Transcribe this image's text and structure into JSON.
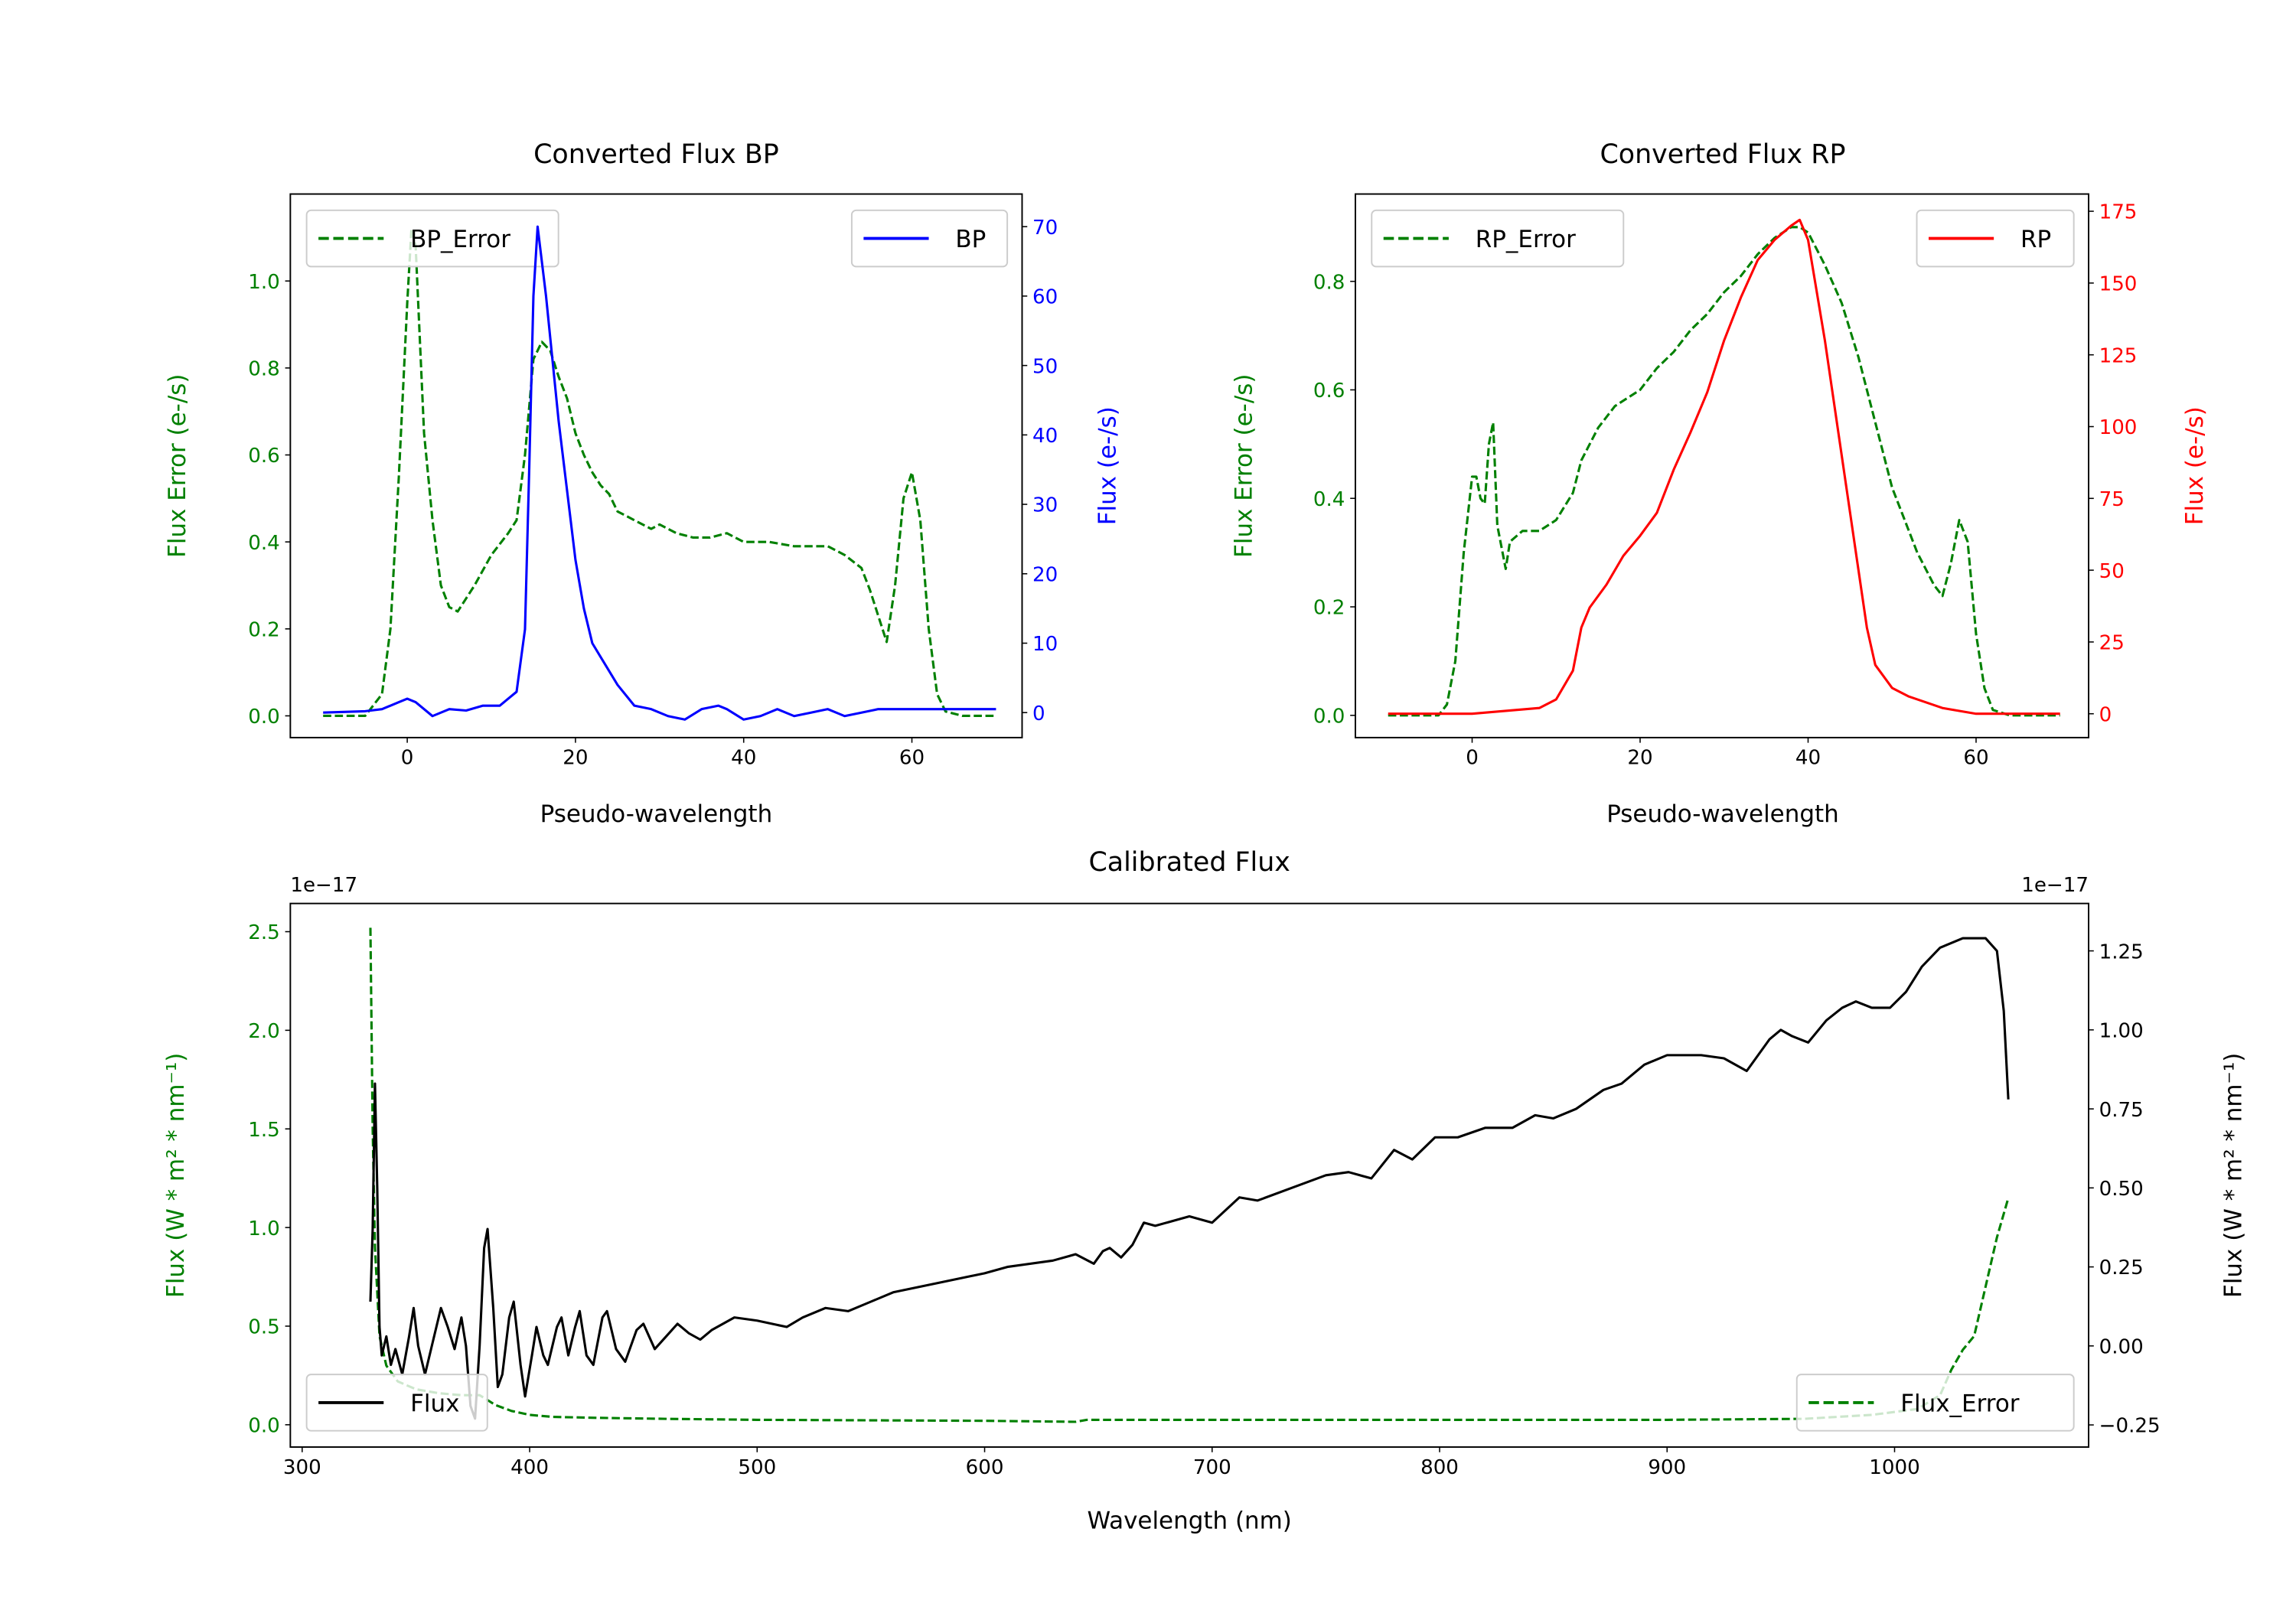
{
  "chart_data": [
    {
      "type": "line",
      "title": "Converted Flux BP",
      "xlabel": "Pseudo-wavelength",
      "ylabel_left": "Flux Error (e-/s)",
      "ylabel_right": "Flux (e-/s)",
      "xlim": [
        -13.9,
        73.1
      ],
      "ylim_left": [
        -0.05,
        1.2
      ],
      "ylim_right": [
        -3.6,
        74.7
      ],
      "xticks": [
        "0",
        "20",
        "40",
        "60"
      ],
      "xtick_values": [
        0,
        20,
        40,
        60
      ],
      "yticks_left": [
        "0.0",
        "0.2",
        "0.4",
        "0.6",
        "0.8",
        "1.0"
      ],
      "ytick_left_values": [
        0,
        0.2,
        0.4,
        0.6,
        0.8,
        1.0
      ],
      "yticks_right": [
        "0",
        "10",
        "20",
        "30",
        "40",
        "50",
        "60",
        "70"
      ],
      "ytick_right_values": [
        0,
        10,
        20,
        30,
        40,
        50,
        60,
        70
      ],
      "left_color": "#008000",
      "right_color": "#0000ff",
      "series": [
        {
          "name": "BP_Error",
          "axis": "left",
          "color": "#008000",
          "style": "dashed",
          "legend": "upper left",
          "x": [
            -10,
            -5,
            -3,
            -2,
            -1,
            0,
            0.5,
            1,
            2,
            3,
            4,
            5,
            6,
            7,
            8,
            10,
            12,
            13,
            14,
            15,
            16,
            17,
            18,
            19,
            20,
            21,
            22,
            23,
            24,
            25,
            27,
            29,
            30,
            32,
            34,
            36,
            38,
            40,
            43,
            46,
            48,
            50,
            52,
            54,
            55,
            56,
            57,
            58,
            59,
            60,
            61,
            62,
            63,
            64,
            66,
            70
          ],
          "y": [
            0,
            0,
            0.05,
            0.2,
            0.55,
            0.95,
            1.12,
            1.08,
            0.65,
            0.45,
            0.3,
            0.25,
            0.24,
            0.27,
            0.3,
            0.37,
            0.42,
            0.45,
            0.6,
            0.82,
            0.86,
            0.84,
            0.78,
            0.73,
            0.65,
            0.6,
            0.56,
            0.53,
            0.51,
            0.47,
            0.45,
            0.43,
            0.44,
            0.42,
            0.41,
            0.41,
            0.42,
            0.4,
            0.4,
            0.39,
            0.39,
            0.39,
            0.37,
            0.34,
            0.29,
            0.23,
            0.17,
            0.3,
            0.5,
            0.56,
            0.45,
            0.2,
            0.05,
            0.01,
            0,
            0
          ]
        },
        {
          "name": "BP",
          "axis": "right",
          "color": "#0000ff",
          "style": "solid",
          "legend": "upper right",
          "x": [
            -10,
            -5,
            -3,
            -1,
            0,
            1,
            3,
            5,
            7,
            9,
            11,
            12,
            13,
            14,
            14.5,
            15,
            15.5,
            16.5,
            18,
            20,
            21,
            22,
            23,
            25,
            27,
            29,
            31,
            33,
            35,
            37,
            38,
            40,
            42,
            44,
            46,
            48,
            50,
            52,
            54,
            56,
            60,
            70
          ],
          "y": [
            0,
            0.2,
            0.5,
            1.5,
            2,
            1.5,
            -0.5,
            0.5,
            0.3,
            1,
            1,
            2,
            3,
            12,
            35,
            60,
            70,
            60,
            42,
            22,
            15,
            10,
            8,
            4,
            1,
            0.5,
            -0.5,
            -1,
            0.5,
            1,
            0.5,
            -1,
            -0.5,
            0.5,
            -0.5,
            0,
            0.5,
            -0.5,
            0,
            0.5,
            0.5,
            0.5
          ]
        }
      ]
    },
    {
      "type": "line",
      "title": "Converted Flux RP",
      "xlabel": "Pseudo-wavelength",
      "ylabel_left": "Flux Error (e-/s)",
      "ylabel_right": "Flux (e-/s)",
      "xlim": [
        -13.9,
        73.4
      ],
      "ylim_left": [
        -0.041,
        0.961
      ],
      "ylim_right": [
        -8.3,
        181
      ],
      "xticks": [
        "0",
        "20",
        "40",
        "60"
      ],
      "xtick_values": [
        0,
        20,
        40,
        60
      ],
      "yticks_left": [
        "0.0",
        "0.2",
        "0.4",
        "0.6",
        "0.8"
      ],
      "ytick_left_values": [
        0,
        0.2,
        0.4,
        0.6,
        0.8
      ],
      "yticks_right": [
        "0",
        "25",
        "50",
        "75",
        "100",
        "125",
        "150",
        "175"
      ],
      "ytick_right_values": [
        0,
        25,
        50,
        75,
        100,
        125,
        150,
        175
      ],
      "left_color": "#008000",
      "right_color": "#ff0000",
      "series": [
        {
          "name": "RP_Error",
          "axis": "left",
          "color": "#008000",
          "style": "dashed",
          "legend": "upper left",
          "x": [
            -10,
            -4,
            -3,
            -2,
            -1,
            0,
            0.5,
            1,
            1.5,
            2,
            2.5,
            3,
            4,
            4.5,
            6,
            8,
            10,
            12,
            13,
            15,
            17,
            20,
            22,
            24,
            26,
            28,
            30,
            32,
            34,
            36,
            38,
            39,
            40,
            42,
            44,
            46,
            48,
            50,
            52,
            53,
            54,
            55,
            56,
            57,
            58,
            59,
            60,
            61,
            62,
            64,
            70
          ],
          "y": [
            0,
            0,
            0.02,
            0.1,
            0.3,
            0.44,
            0.44,
            0.4,
            0.39,
            0.5,
            0.54,
            0.35,
            0.27,
            0.32,
            0.34,
            0.34,
            0.36,
            0.41,
            0.47,
            0.53,
            0.57,
            0.6,
            0.64,
            0.67,
            0.71,
            0.74,
            0.78,
            0.81,
            0.85,
            0.88,
            0.9,
            0.9,
            0.89,
            0.83,
            0.76,
            0.66,
            0.54,
            0.42,
            0.34,
            0.3,
            0.27,
            0.24,
            0.22,
            0.28,
            0.36,
            0.32,
            0.15,
            0.05,
            0.01,
            0,
            0
          ]
        },
        {
          "name": "RP",
          "axis": "right",
          "color": "#ff0000",
          "style": "solid",
          "legend": "upper right",
          "x": [
            -10,
            0,
            4,
            8,
            10,
            12,
            13,
            14,
            16,
            18,
            20,
            22,
            24,
            26,
            28,
            30,
            32,
            34,
            36,
            38,
            39,
            40,
            42,
            44,
            46,
            47,
            48,
            50,
            52,
            54,
            56,
            58,
            60,
            70
          ],
          "y": [
            0,
            0,
            1,
            2,
            5,
            15,
            30,
            37,
            45,
            55,
            62,
            70,
            85,
            98,
            112,
            130,
            145,
            158,
            165,
            170,
            172,
            165,
            130,
            90,
            50,
            30,
            17,
            9,
            6,
            4,
            2,
            1,
            0,
            0
          ]
        }
      ]
    },
    {
      "type": "line",
      "title": "Calibrated Flux",
      "xlabel": "Wavelength (nm)",
      "ylabel_left": "Flux (W * m² * nm⁻¹)",
      "ylabel_right": "Flux (W * m² * nm⁻¹)",
      "offset_left": "1e−17",
      "offset_right": "1e−17",
      "xlim": [
        294.8,
        1085.3
      ],
      "ylim_left": [
        -0.113,
        2.643
      ],
      "ylim_right": [
        -0.32,
        1.4
      ],
      "xticks": [
        "300",
        "400",
        "500",
        "600",
        "700",
        "800",
        "900",
        "1000"
      ],
      "xtick_values": [
        300,
        400,
        500,
        600,
        700,
        800,
        900,
        1000
      ],
      "yticks_left": [
        "0.0",
        "0.5",
        "1.0",
        "1.5",
        "2.0",
        "2.5"
      ],
      "ytick_left_values": [
        0,
        0.5,
        1.0,
        1.5,
        2.0,
        2.5
      ],
      "yticks_right": [
        "−0.25",
        "0.00",
        "0.25",
        "0.50",
        "0.75",
        "1.00",
        "1.25"
      ],
      "ytick_right_values": [
        -0.25,
        0,
        0.25,
        0.5,
        0.75,
        1.0,
        1.25
      ],
      "left_color": "#008000",
      "right_color": "#000000",
      "series": [
        {
          "name": "Flux_Error",
          "axis": "left",
          "color": "#008000",
          "style": "dashed",
          "legend": "lower right",
          "x": [
            330,
            331,
            332,
            334,
            337,
            342,
            350,
            360,
            370,
            378,
            385,
            392,
            400,
            410,
            430,
            460,
            500,
            600,
            640,
            645,
            700,
            800,
            900,
            960,
            990,
            1010,
            1020,
            1025,
            1030,
            1035,
            1040,
            1045,
            1050
          ],
          "y": [
            2.52,
            1.5,
            0.9,
            0.45,
            0.3,
            0.22,
            0.18,
            0.16,
            0.15,
            0.15,
            0.1,
            0.07,
            0.05,
            0.04,
            0.035,
            0.03,
            0.025,
            0.02,
            0.015,
            0.025,
            0.025,
            0.025,
            0.025,
            0.03,
            0.05,
            0.08,
            0.15,
            0.28,
            0.38,
            0.45,
            0.7,
            0.95,
            1.15
          ]
        },
        {
          "name": "Flux",
          "axis": "right",
          "color": "#000000",
          "style": "solid",
          "legend": "lower left",
          "x": [
            330,
            331,
            332,
            333,
            334,
            335,
            337,
            339,
            341,
            344,
            347,
            349,
            351,
            354,
            357,
            361,
            364,
            367,
            370,
            372,
            374,
            376,
            378,
            380,
            381.5,
            384,
            386,
            388,
            391,
            393,
            396,
            398,
            401,
            403,
            406,
            408,
            412,
            414,
            417,
            420,
            422,
            425,
            428,
            432,
            434,
            438,
            442,
            447,
            450,
            455,
            460,
            465,
            470,
            475,
            480,
            490,
            500,
            513,
            520,
            530,
            540,
            550,
            560,
            580,
            600,
            610,
            630,
            640,
            648,
            652,
            655,
            660,
            665,
            670,
            675,
            690,
            700,
            712,
            720,
            735,
            750,
            760,
            770,
            780,
            788,
            798,
            808,
            820,
            832,
            842,
            850,
            860,
            872,
            880,
            890,
            900,
            915,
            925,
            935,
            945,
            950,
            955,
            962,
            970,
            977,
            983,
            990,
            998,
            1005,
            1012,
            1020,
            1030,
            1040,
            1045,
            1048,
            1050
          ],
          "y": [
            0.14,
            0.37,
            0.83,
            0.5,
            0.06,
            -0.03,
            0.03,
            -0.06,
            -0.01,
            -0.09,
            0.03,
            0.12,
            0.0,
            -0.09,
            0.0,
            0.12,
            0.06,
            -0.01,
            0.09,
            0.0,
            -0.19,
            -0.23,
            0.0,
            0.31,
            0.37,
            0.12,
            -0.13,
            -0.09,
            0.09,
            0.14,
            -0.06,
            -0.16,
            -0.03,
            0.06,
            -0.03,
            -0.06,
            0.06,
            0.09,
            -0.03,
            0.06,
            0.11,
            -0.03,
            -0.06,
            0.09,
            0.11,
            -0.01,
            -0.05,
            0.05,
            0.07,
            -0.01,
            0.03,
            0.07,
            0.04,
            0.02,
            0.05,
            0.09,
            0.08,
            0.06,
            0.09,
            0.12,
            0.11,
            0.14,
            0.17,
            0.2,
            0.23,
            0.25,
            0.27,
            0.29,
            0.26,
            0.3,
            0.31,
            0.28,
            0.32,
            0.39,
            0.38,
            0.41,
            0.39,
            0.47,
            0.46,
            0.5,
            0.54,
            0.55,
            0.53,
            0.62,
            0.59,
            0.66,
            0.66,
            0.69,
            0.69,
            0.73,
            0.72,
            0.75,
            0.81,
            0.83,
            0.89,
            0.92,
            0.92,
            0.91,
            0.87,
            0.97,
            1.0,
            0.98,
            0.96,
            1.03,
            1.07,
            1.09,
            1.07,
            1.07,
            1.12,
            1.2,
            1.26,
            1.29,
            1.29,
            1.25,
            1.06,
            0.78
          ]
        }
      ]
    }
  ]
}
